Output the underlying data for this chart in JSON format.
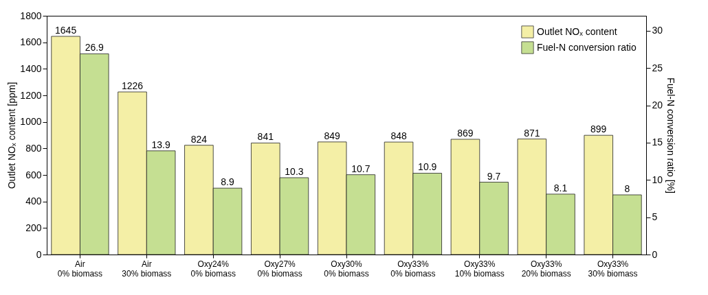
{
  "chart_data": {
    "type": "bar",
    "ylabel": "Outlet NOₓ content [ppm]",
    "y2label": "Fuel-N conversion ratio [%]",
    "categories": [
      "Air\n0% biomass",
      "Air\n30% biomass",
      "Oxy24%\n0% biomass",
      "Oxy27%\n0% biomass",
      "Oxy30%\n0% biomass",
      "Oxy33%\n0% biomass",
      "Oxy33%\n10% biomass",
      "Oxy33%\n20% biomass",
      "Oxy33%\n30% biomass"
    ],
    "series": [
      {
        "name": "Outlet NOₓ content",
        "color": "#f4efa6",
        "values": [
          1645,
          1226,
          824,
          841,
          849,
          848,
          869,
          871,
          899
        ]
      },
      {
        "name": "Fuel-N conversion ratio",
        "color": "#c5df92",
        "axis": "y2",
        "values": [
          26.9,
          13.9,
          8.9,
          10.3,
          10.7,
          10.9,
          9.7,
          8.1,
          8
        ]
      }
    ],
    "ylim": [
      0,
      1800
    ],
    "yticks": [
      0,
      200,
      400,
      600,
      800,
      1000,
      1200,
      1400,
      1600,
      1800
    ],
    "y2lim": [
      0,
      32
    ],
    "y2ticks": [
      0,
      5,
      10,
      15,
      20,
      25,
      30
    ],
    "data_labels": true,
    "legend": "top right",
    "grid": false
  }
}
